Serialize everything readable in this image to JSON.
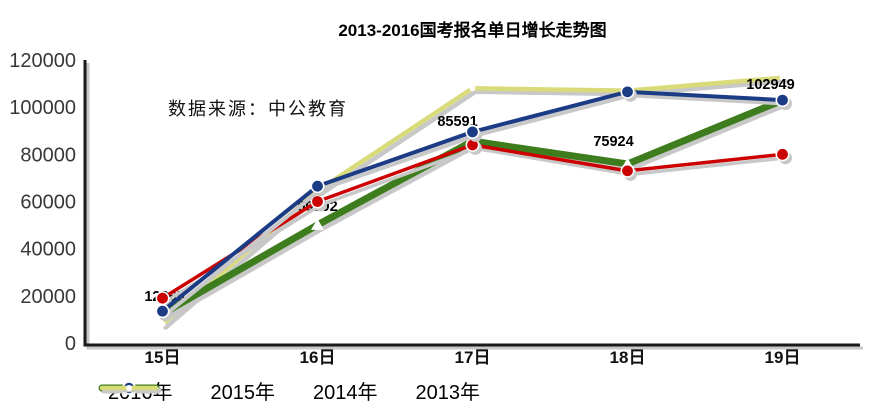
{
  "page": {
    "title": "2013-2016国考报名单日增长走势图",
    "source_note": "数据来源：中公教育"
  },
  "chart_data": {
    "type": "line",
    "title": "2013-2016国考报名单日增长走势图",
    "source_note": "数据来源：中公教育",
    "categories": [
      "15日",
      "16日",
      "17日",
      "18日",
      "19日"
    ],
    "series": [
      {
        "name": "2016年",
        "color": "#3E7D1E",
        "marker": "triangle",
        "line_width": 7,
        "values": [
          12365,
          50092,
          85591,
          75924,
          102949
        ]
      },
      {
        "name": "2015年",
        "color": "#CC0000",
        "marker": "circle",
        "line_width": 3.5,
        "values": [
          19000,
          60000,
          84000,
          73000,
          80000
        ]
      },
      {
        "name": "2014年",
        "color": "#1B3C85",
        "marker": "circle",
        "line_width": 4,
        "values": [
          13500,
          66500,
          89500,
          106500,
          103000
        ]
      },
      {
        "name": "2013年",
        "color": "#D9DB7A",
        "marker": "dot",
        "line_width": 4.5,
        "values": [
          8000,
          64500,
          108000,
          107000,
          112500
        ]
      }
    ],
    "data_labels": {
      "series": "2016年",
      "labels": [
        "12365",
        "50092",
        "85591",
        "75924",
        "102949"
      ]
    },
    "ylabel": "",
    "xlabel": "",
    "ylim": [
      0,
      120000
    ],
    "ytick_step": 20000,
    "yticks": [
      "0",
      "20000",
      "40000",
      "60000",
      "80000",
      "100000",
      "120000"
    ],
    "grid": false,
    "legend_position": "bottom",
    "shadow_color": "#c8c8c8",
    "axis_color": "#1a1a1a",
    "text_color": "#383838"
  }
}
